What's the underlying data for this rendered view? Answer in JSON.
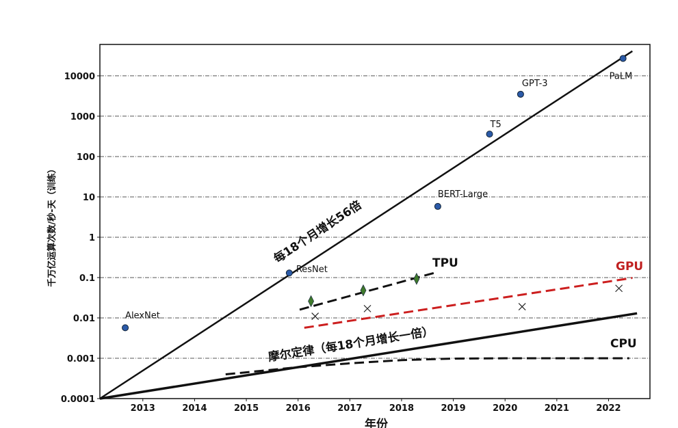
{
  "chart_data": {
    "type": "scatter",
    "title": "",
    "xlabel": "年份",
    "ylabel": "千万亿运算次数/秒-天（训练）",
    "xlim": [
      2012.17,
      2022.8
    ],
    "ylim": [
      0.0001,
      60000
    ],
    "yscale": "log",
    "grid": "horizontal dashed",
    "x_ticks": [
      2013,
      2014,
      2015,
      2016,
      2017,
      2018,
      2019,
      2020,
      2021,
      2022
    ],
    "y_ticks": [
      0.0001,
      0.001,
      0.01,
      0.1,
      1,
      10,
      100,
      1000,
      10000
    ],
    "y_tick_labels": [
      "0.0001",
      "0.001",
      "0.01",
      "0.1",
      "1",
      "10",
      "100",
      "1000",
      "10000"
    ],
    "models": [
      {
        "name": "AlexNet",
        "x": 2012.66,
        "y": 0.0057
      },
      {
        "name": "ResNet",
        "x": 2015.83,
        "y": 0.13
      },
      {
        "name": "BERT-Large",
        "x": 2018.7,
        "y": 5.8
      },
      {
        "name": "T5",
        "x": 2019.7,
        "y": 360
      },
      {
        "name": "GPT-3",
        "x": 2020.3,
        "y": 3500
      },
      {
        "name": "PaLM",
        "x": 2022.28,
        "y": 27000
      }
    ],
    "tpu_points": [
      {
        "x": 2016.25,
        "y": 0.026
      },
      {
        "x": 2017.26,
        "y": 0.048
      },
      {
        "x": 2018.29,
        "y": 0.093
      }
    ],
    "gpu_points": [
      {
        "x": 2016.33,
        "y": 0.011
      },
      {
        "x": 2017.34,
        "y": 0.017
      },
      {
        "x": 2020.33,
        "y": 0.019
      },
      {
        "x": 2022.2,
        "y": 0.054
      }
    ],
    "trend_lines": [
      {
        "id": "model-trend",
        "label": "每18个月增长56倍",
        "style": "solid",
        "color": "#111111",
        "points": [
          [
            2012.17,
            0.0001
          ],
          [
            2022.46,
            41000
          ]
        ]
      },
      {
        "id": "moore",
        "label": "摩尔定律（每18个月增长一倍）",
        "style": "solid",
        "color": "#111111",
        "points": [
          [
            2012.17,
            0.0001
          ],
          [
            2022.55,
            0.013
          ]
        ]
      },
      {
        "id": "tpu",
        "label": "TPU",
        "style": "dashed",
        "color": "#111111",
        "points": [
          [
            2016.03,
            0.016
          ],
          [
            2018.63,
            0.13
          ]
        ]
      },
      {
        "id": "gpu",
        "label": "GPU",
        "style": "dashed",
        "color": "#cc1f1f",
        "points": [
          [
            2016.12,
            0.0057
          ],
          [
            2022.46,
            0.098
          ]
        ]
      },
      {
        "id": "cpu",
        "label": "CPU",
        "style": "dashed",
        "color": "#111111",
        "points": [
          [
            2014.6,
            0.0004
          ],
          [
            2016,
            0.0006
          ],
          [
            2017,
            0.00075
          ],
          [
            2018,
            0.0009
          ],
          [
            2019,
            0.00098
          ],
          [
            2020,
            0.001
          ],
          [
            2022.4,
            0.001
          ]
        ]
      }
    ],
    "colors": {
      "model_points": "#2b5aa8",
      "tpu_points": "#3f7a2a",
      "gpu_line": "#cc1f1f",
      "gpu_label": "#c02020"
    }
  }
}
